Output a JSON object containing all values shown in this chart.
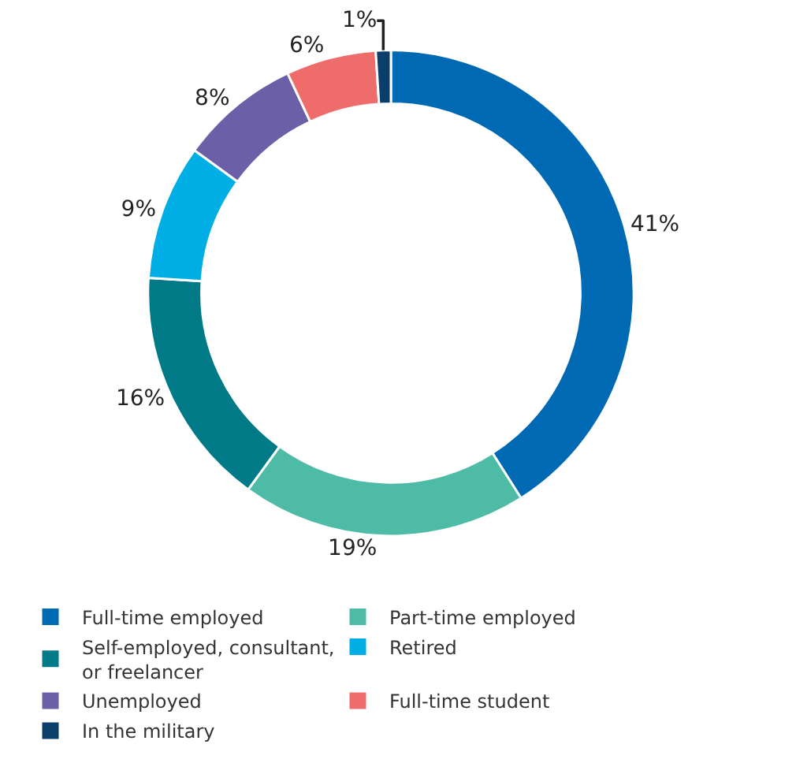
{
  "chart_data": {
    "type": "donut",
    "categories": [
      "Full-time employed",
      "Part-time employed",
      "Self-employed, consultant, or freelancer",
      "Retired",
      "Unemployed",
      "Full-time student",
      "In the military"
    ],
    "values": [
      41,
      19,
      16,
      9,
      8,
      6,
      1
    ],
    "value_labels": [
      "41%",
      "19%",
      "16%",
      "9%",
      "8%",
      "6%",
      "1%"
    ],
    "colors": [
      "#0069b4",
      "#4dbba5",
      "#007a87",
      "#00aee6",
      "#6b5fa8",
      "#ee6d6b",
      "#0a3e6b"
    ],
    "legend": "bottom"
  }
}
